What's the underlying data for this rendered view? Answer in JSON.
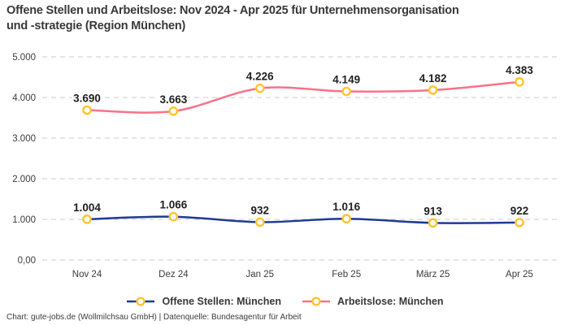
{
  "header": {
    "title_line1": "Offene Stellen und Arbeitslose: Nov 2024 - Apr 2025 für Unternehmensorganisation",
    "title_line2": "und -strategie (Region München)"
  },
  "chart_data": {
    "type": "line",
    "title": "Offene Stellen und Arbeitslose: Nov 2024 - Apr 2025 für Unternehmensorganisation und -strategie (Region München)",
    "categories": [
      "Nov 24",
      "Dez 24",
      "Jan 25",
      "Feb 25",
      "März 25",
      "Apr 25"
    ],
    "series": [
      {
        "name": "Offene Stellen: München",
        "color": "#1E3A96",
        "values": [
          1004,
          1066,
          932,
          1016,
          913,
          922
        ],
        "labels": [
          "1.004",
          "1.066",
          "932",
          "1.016",
          "913",
          "922"
        ]
      },
      {
        "name": "Arbeitslose: München",
        "color": "#F87289",
        "values": [
          3690,
          3663,
          4226,
          4149,
          4182,
          4383
        ],
        "labels": [
          "3.690",
          "3.663",
          "4.226",
          "4.149",
          "4.182",
          "4.383"
        ]
      }
    ],
    "y_axis": {
      "min": 0,
      "max": 5000,
      "ticks": [
        {
          "value": 5000,
          "label": "5.000"
        },
        {
          "value": 4000,
          "label": "4.000"
        },
        {
          "value": 3000,
          "label": "3.000"
        },
        {
          "value": 2000,
          "label": "2.000"
        },
        {
          "value": 1000,
          "label": "1.000"
        },
        {
          "value": 0,
          "label": "0,00"
        }
      ]
    },
    "xlabel": "",
    "ylabel": "",
    "ylim": [
      0,
      5000
    ],
    "grid": "horizontal-dashed",
    "gridline_color": "#cbcbcb",
    "legend_position": "bottom",
    "marker": {
      "fill": "#ffffff",
      "stroke": "#FFC42E"
    }
  },
  "footer": {
    "text": "Chart: gute-jobs.de (Wollmilchsau GmbH) | Datenquelle: Bundesagentur für Arbeit"
  }
}
